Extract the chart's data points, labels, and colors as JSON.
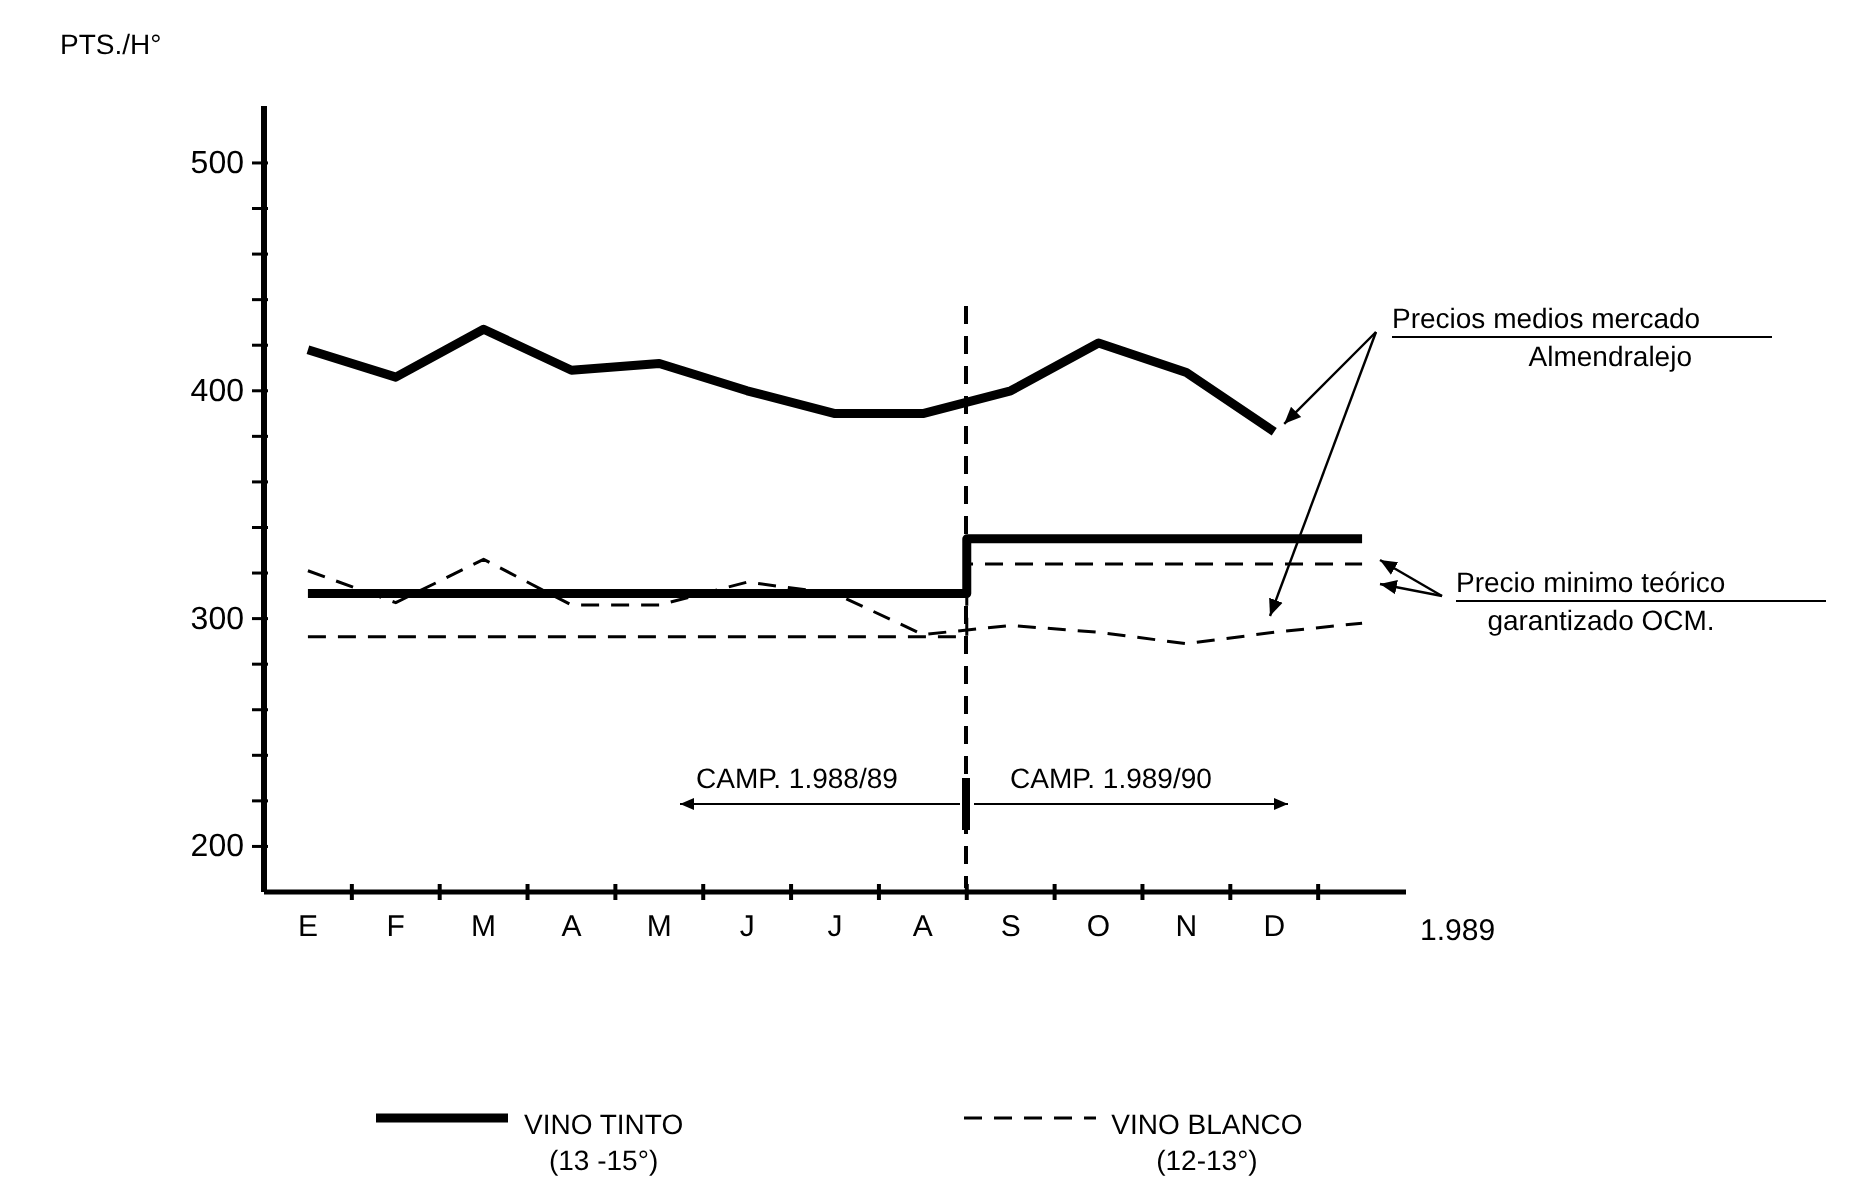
{
  "chart_data": {
    "type": "line",
    "ylabel": "PTS./H°",
    "xlabel": "1.989",
    "categories": [
      "E",
      "F",
      "M",
      "A",
      "M",
      "J",
      "J",
      "A",
      "S",
      "O",
      "N",
      "D",
      null
    ],
    "ylim": [
      180,
      525
    ],
    "yticks": [
      200,
      {
        "value": 220,
        "label": null
      },
      {
        "value": 240,
        "label": null
      },
      {
        "value": 260,
        "label": null
      },
      {
        "value": 280,
        "label": null
      },
      300,
      {
        "value": 320,
        "label": null
      },
      {
        "value": 340,
        "label": null
      },
      {
        "value": 360,
        "label": null
      },
      {
        "value": 380,
        "label": null
      },
      400,
      {
        "value": 420,
        "label": null
      },
      {
        "value": 440,
        "label": null
      },
      {
        "value": 460,
        "label": null
      },
      {
        "value": 480,
        "label": null
      },
      500
    ],
    "legend": "bottom",
    "marker": "none",
    "series": [
      {
        "name": "VINO TINTO\n(13 -15°)",
        "color": "#000000",
        "line_style": "solid",
        "values": [
          418,
          406,
          427,
          409,
          412,
          400,
          390,
          390,
          400,
          421,
          408,
          382,
          null
        ]
      },
      {
        "type": "step",
        "color": "#000000",
        "line_style": "solid",
        "values": [
          311,
          311,
          311,
          311,
          311,
          311,
          311,
          311,
          335,
          335,
          335,
          335,
          335
        ]
      },
      {
        "name": "VINO BLANCO\n(12-13°)",
        "color": "#000000",
        "line_style": "dashed",
        "values": [
          321,
          307,
          326,
          306,
          306,
          316,
          311,
          293,
          297,
          294,
          289,
          294,
          298
        ]
      },
      {
        "type": "step",
        "color": "#000000",
        "line_style": "dashed",
        "values": [
          292,
          292,
          292,
          292,
          292,
          292,
          292,
          292,
          324,
          324,
          324,
          324,
          324
        ]
      }
    ],
    "annotations": [
      {
        "text": "Precios medios mercado\nAlmendralejo",
        "x": "D",
        "y": 382
      },
      "Precio minimo teórico\ngarantizado OCM.",
      "CAMP. 1.988/89",
      "CAMP. 1.989/90"
    ]
  }
}
